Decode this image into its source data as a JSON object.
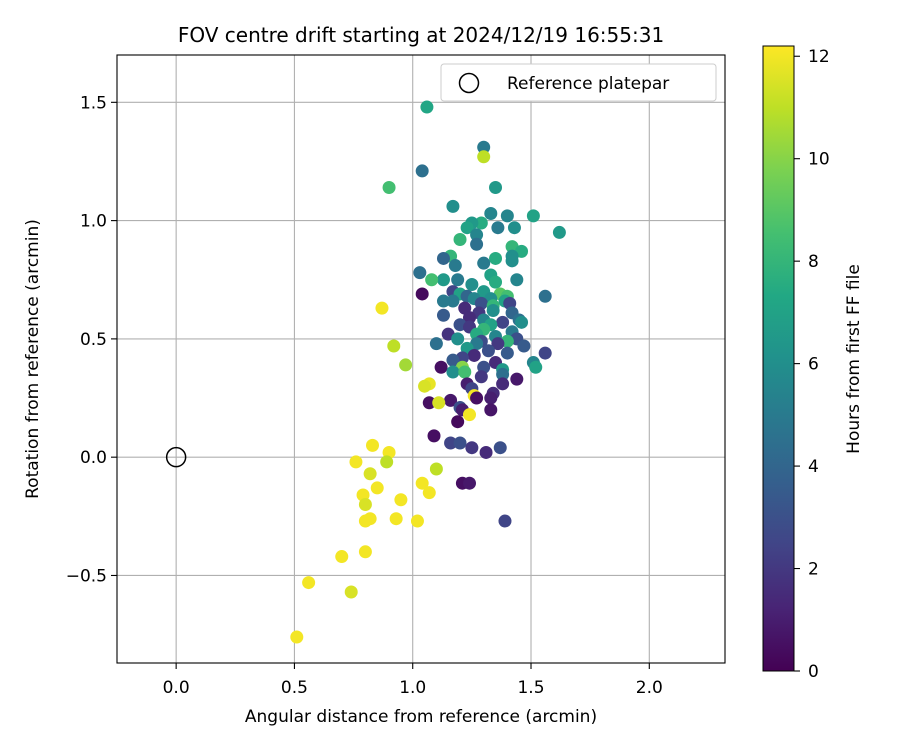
{
  "chart_data": {
    "type": "scatter",
    "title": "FOV centre drift starting at 2024/12/19 16:55:31",
    "xlabel": "Angular distance from reference (arcmin)",
    "ylabel": "Rotation from reference (arcmin)",
    "xlim": [
      -0.25,
      2.32
    ],
    "ylim": [
      -0.87,
      1.7
    ],
    "xticks": [
      0.0,
      0.5,
      1.0,
      1.5,
      2.0
    ],
    "xtick_labels": [
      "0.0",
      "0.5",
      "1.0",
      "1.5",
      "2.0"
    ],
    "yticks": [
      -0.5,
      0.0,
      0.5,
      1.0,
      1.5
    ],
    "ytick_labels": [
      "−0.5",
      "0.0",
      "0.5",
      "1.0",
      "1.5"
    ],
    "grid": true,
    "legend": {
      "placement": "top-right",
      "entries": [
        {
          "label": "Reference platepar",
          "marker": "open-circle"
        }
      ]
    },
    "reference_point": {
      "x": 0.0,
      "y": 0.0
    },
    "colorbar": {
      "label": "Hours from first FF file",
      "colormap": "viridis",
      "range": [
        0,
        12.2
      ],
      "ticks": [
        0,
        2,
        4,
        6,
        8,
        10,
        12
      ],
      "tick_labels": [
        "0",
        "2",
        "4",
        "6",
        "8",
        "10",
        "12"
      ]
    },
    "series": [
      {
        "points": [
          {
            "x": 1.06,
            "y": 1.48,
            "h": 7.2
          },
          {
            "x": 1.3,
            "y": 1.31,
            "h": 5.0
          },
          {
            "x": 1.3,
            "y": 1.27,
            "h": 11.0
          },
          {
            "x": 1.04,
            "y": 1.21,
            "h": 4.5
          },
          {
            "x": 0.9,
            "y": 1.14,
            "h": 8.5
          },
          {
            "x": 1.35,
            "y": 1.14,
            "h": 6.5
          },
          {
            "x": 1.17,
            "y": 1.06,
            "h": 6.0
          },
          {
            "x": 1.33,
            "y": 1.03,
            "h": 5.5
          },
          {
            "x": 1.51,
            "y": 1.02,
            "h": 7.0
          },
          {
            "x": 1.4,
            "y": 1.02,
            "h": 5.5
          },
          {
            "x": 1.29,
            "y": 0.99,
            "h": 7.5
          },
          {
            "x": 1.25,
            "y": 0.99,
            "h": 6.5
          },
          {
            "x": 1.36,
            "y": 0.97,
            "h": 5.0
          },
          {
            "x": 1.23,
            "y": 0.97,
            "h": 7.0
          },
          {
            "x": 1.43,
            "y": 0.97,
            "h": 6.0
          },
          {
            "x": 1.62,
            "y": 0.95,
            "h": 6.5
          },
          {
            "x": 1.27,
            "y": 0.94,
            "h": 5.5
          },
          {
            "x": 1.2,
            "y": 0.92,
            "h": 8.0
          },
          {
            "x": 1.27,
            "y": 0.9,
            "h": 4.5
          },
          {
            "x": 1.42,
            "y": 0.89,
            "h": 8.0
          },
          {
            "x": 1.46,
            "y": 0.87,
            "h": 7.5
          },
          {
            "x": 1.42,
            "y": 0.85,
            "h": 6.0
          },
          {
            "x": 1.16,
            "y": 0.85,
            "h": 8.0
          },
          {
            "x": 1.13,
            "y": 0.84,
            "h": 4.0
          },
          {
            "x": 1.35,
            "y": 0.84,
            "h": 7.5
          },
          {
            "x": 1.42,
            "y": 0.83,
            "h": 6.0
          },
          {
            "x": 1.3,
            "y": 0.82,
            "h": 5.0
          },
          {
            "x": 1.18,
            "y": 0.81,
            "h": 5.0
          },
          {
            "x": 1.03,
            "y": 0.78,
            "h": 4.5
          },
          {
            "x": 1.33,
            "y": 0.77,
            "h": 7.0
          },
          {
            "x": 1.19,
            "y": 0.75,
            "h": 5.0
          },
          {
            "x": 1.13,
            "y": 0.75,
            "h": 6.5
          },
          {
            "x": 1.08,
            "y": 0.75,
            "h": 8.5
          },
          {
            "x": 1.44,
            "y": 0.75,
            "h": 5.5
          },
          {
            "x": 1.35,
            "y": 0.74,
            "h": 7.5
          },
          {
            "x": 1.25,
            "y": 0.73,
            "h": 6.0
          },
          {
            "x": 1.17,
            "y": 0.7,
            "h": 2.5
          },
          {
            "x": 1.3,
            "y": 0.7,
            "h": 6.5
          },
          {
            "x": 1.37,
            "y": 0.69,
            "h": 9.0
          },
          {
            "x": 1.2,
            "y": 0.69,
            "h": 7.0
          },
          {
            "x": 1.04,
            "y": 0.69,
            "h": 0.3
          },
          {
            "x": 1.23,
            "y": 0.68,
            "h": 4.0
          },
          {
            "x": 1.4,
            "y": 0.68,
            "h": 8.5
          },
          {
            "x": 1.56,
            "y": 0.68,
            "h": 4.5
          },
          {
            "x": 1.26,
            "y": 0.67,
            "h": 5.5
          },
          {
            "x": 1.33,
            "y": 0.67,
            "h": 6.0
          },
          {
            "x": 1.17,
            "y": 0.66,
            "h": 5.0
          },
          {
            "x": 1.39,
            "y": 0.66,
            "h": 7.0
          },
          {
            "x": 1.13,
            "y": 0.66,
            "h": 5.0
          },
          {
            "x": 1.29,
            "y": 0.65,
            "h": 3.0
          },
          {
            "x": 1.41,
            "y": 0.65,
            "h": 2.5
          },
          {
            "x": 1.34,
            "y": 0.64,
            "h": 8.0
          },
          {
            "x": 1.22,
            "y": 0.63,
            "h": 1.5
          },
          {
            "x": 1.34,
            "y": 0.62,
            "h": 6.0
          },
          {
            "x": 1.28,
            "y": 0.61,
            "h": 2.0
          },
          {
            "x": 1.42,
            "y": 0.61,
            "h": 4.0
          },
          {
            "x": 1.13,
            "y": 0.6,
            "h": 3.5
          },
          {
            "x": 1.24,
            "y": 0.59,
            "h": 1.5
          },
          {
            "x": 1.3,
            "y": 0.58,
            "h": 5.5
          },
          {
            "x": 1.45,
            "y": 0.58,
            "h": 4.5
          },
          {
            "x": 1.38,
            "y": 0.57,
            "h": 2.5
          },
          {
            "x": 1.46,
            "y": 0.57,
            "h": 6.0
          },
          {
            "x": 1.2,
            "y": 0.56,
            "h": 3.0
          },
          {
            "x": 1.33,
            "y": 0.56,
            "h": 7.0
          },
          {
            "x": 1.24,
            "y": 0.55,
            "h": 2.0
          },
          {
            "x": 1.3,
            "y": 0.54,
            "h": 8.0
          },
          {
            "x": 1.42,
            "y": 0.53,
            "h": 5.0
          },
          {
            "x": 1.15,
            "y": 0.52,
            "h": 1.8
          },
          {
            "x": 1.27,
            "y": 0.52,
            "h": 7.5
          },
          {
            "x": 1.35,
            "y": 0.51,
            "h": 5.5
          },
          {
            "x": 1.44,
            "y": 0.5,
            "h": 3.0
          },
          {
            "x": 1.19,
            "y": 0.5,
            "h": 6.0
          },
          {
            "x": 1.29,
            "y": 0.49,
            "h": 2.8
          },
          {
            "x": 1.4,
            "y": 0.49,
            "h": 8.0
          },
          {
            "x": 1.1,
            "y": 0.48,
            "h": 4.5
          },
          {
            "x": 1.27,
            "y": 0.48,
            "h": 5.0
          },
          {
            "x": 1.36,
            "y": 0.48,
            "h": 2.0
          },
          {
            "x": 1.47,
            "y": 0.47,
            "h": 3.5
          },
          {
            "x": 1.23,
            "y": 0.46,
            "h": 6.5
          },
          {
            "x": 1.32,
            "y": 0.45,
            "h": 3.0
          },
          {
            "x": 1.56,
            "y": 0.44,
            "h": 2.5
          },
          {
            "x": 1.4,
            "y": 0.44,
            "h": 3.5
          },
          {
            "x": 1.26,
            "y": 0.43,
            "h": 1.5
          },
          {
            "x": 1.21,
            "y": 0.42,
            "h": 2.5
          },
          {
            "x": 1.17,
            "y": 0.41,
            "h": 3.5
          },
          {
            "x": 1.35,
            "y": 0.4,
            "h": 1.5
          },
          {
            "x": 1.51,
            "y": 0.4,
            "h": 5.5
          },
          {
            "x": 1.52,
            "y": 0.38,
            "h": 7.0
          },
          {
            "x": 1.21,
            "y": 0.38,
            "h": 10.0
          },
          {
            "x": 1.12,
            "y": 0.38,
            "h": 0.5
          },
          {
            "x": 1.3,
            "y": 0.38,
            "h": 3.0
          },
          {
            "x": 1.38,
            "y": 0.37,
            "h": 6.5
          },
          {
            "x": 1.17,
            "y": 0.36,
            "h": 6.0
          },
          {
            "x": 1.22,
            "y": 0.36,
            "h": 8.5
          },
          {
            "x": 1.38,
            "y": 0.35,
            "h": 4.5
          },
          {
            "x": 1.29,
            "y": 0.34,
            "h": 2.0
          },
          {
            "x": 1.44,
            "y": 0.33,
            "h": 0.8
          },
          {
            "x": 1.23,
            "y": 0.31,
            "h": 1.0
          },
          {
            "x": 1.38,
            "y": 0.31,
            "h": 1.5
          },
          {
            "x": 1.07,
            "y": 0.31,
            "h": 11.8
          },
          {
            "x": 1.05,
            "y": 0.3,
            "h": 11.5
          },
          {
            "x": 1.25,
            "y": 0.29,
            "h": 2.5
          },
          {
            "x": 1.34,
            "y": 0.27,
            "h": 1.5
          },
          {
            "x": 1.26,
            "y": 0.26,
            "h": 12.0
          },
          {
            "x": 1.33,
            "y": 0.25,
            "h": 1.0
          },
          {
            "x": 1.27,
            "y": 0.25,
            "h": 0.5
          },
          {
            "x": 1.16,
            "y": 0.24,
            "h": 0.8
          },
          {
            "x": 1.07,
            "y": 0.23,
            "h": 0.5
          },
          {
            "x": 1.11,
            "y": 0.23,
            "h": 11.5
          },
          {
            "x": 1.2,
            "y": 0.21,
            "h": 3.0
          },
          {
            "x": 1.21,
            "y": 0.2,
            "h": 1.0
          },
          {
            "x": 1.33,
            "y": 0.2,
            "h": 0.7
          },
          {
            "x": 1.24,
            "y": 0.18,
            "h": 12.0
          },
          {
            "x": 1.19,
            "y": 0.15,
            "h": 0.3
          },
          {
            "x": 1.09,
            "y": 0.09,
            "h": 0.5
          },
          {
            "x": 1.16,
            "y": 0.06,
            "h": 2.5
          },
          {
            "x": 1.2,
            "y": 0.06,
            "h": 3.0
          },
          {
            "x": 1.25,
            "y": 0.04,
            "h": 2.0
          },
          {
            "x": 1.37,
            "y": 0.04,
            "h": 3.0
          },
          {
            "x": 1.31,
            "y": 0.02,
            "h": 1.5
          },
          {
            "x": 0.83,
            "y": 0.05,
            "h": 12.0
          },
          {
            "x": 0.9,
            "y": 0.02,
            "h": 12.0
          },
          {
            "x": 0.76,
            "y": -0.02,
            "h": 12.0
          },
          {
            "x": 0.89,
            "y": -0.02,
            "h": 11.0
          },
          {
            "x": 1.1,
            "y": -0.05,
            "h": 11.0
          },
          {
            "x": 0.82,
            "y": -0.07,
            "h": 11.5
          },
          {
            "x": 1.04,
            "y": -0.11,
            "h": 12.0
          },
          {
            "x": 1.21,
            "y": -0.11,
            "h": 0.5
          },
          {
            "x": 1.24,
            "y": -0.11,
            "h": 0.8
          },
          {
            "x": 0.85,
            "y": -0.13,
            "h": 12.0
          },
          {
            "x": 1.07,
            "y": -0.15,
            "h": 12.0
          },
          {
            "x": 0.79,
            "y": -0.16,
            "h": 12.0
          },
          {
            "x": 0.95,
            "y": -0.18,
            "h": 12.0
          },
          {
            "x": 0.8,
            "y": -0.2,
            "h": 11.5
          },
          {
            "x": 0.82,
            "y": -0.26,
            "h": 12.0
          },
          {
            "x": 0.93,
            "y": -0.26,
            "h": 12.0
          },
          {
            "x": 0.8,
            "y": -0.27,
            "h": 12.0
          },
          {
            "x": 1.02,
            "y": -0.27,
            "h": 12.0
          },
          {
            "x": 1.39,
            "y": -0.27,
            "h": 2.5
          },
          {
            "x": 0.8,
            "y": -0.4,
            "h": 12.0
          },
          {
            "x": 0.7,
            "y": -0.42,
            "h": 12.0
          },
          {
            "x": 0.56,
            "y": -0.53,
            "h": 12.0
          },
          {
            "x": 0.74,
            "y": -0.57,
            "h": 11.5
          },
          {
            "x": 0.51,
            "y": -0.76,
            "h": 12.0
          },
          {
            "x": 0.87,
            "y": 0.63,
            "h": 12.0
          },
          {
            "x": 0.92,
            "y": 0.47,
            "h": 11.0
          },
          {
            "x": 0.97,
            "y": 0.39,
            "h": 10.5
          }
        ]
      }
    ]
  }
}
